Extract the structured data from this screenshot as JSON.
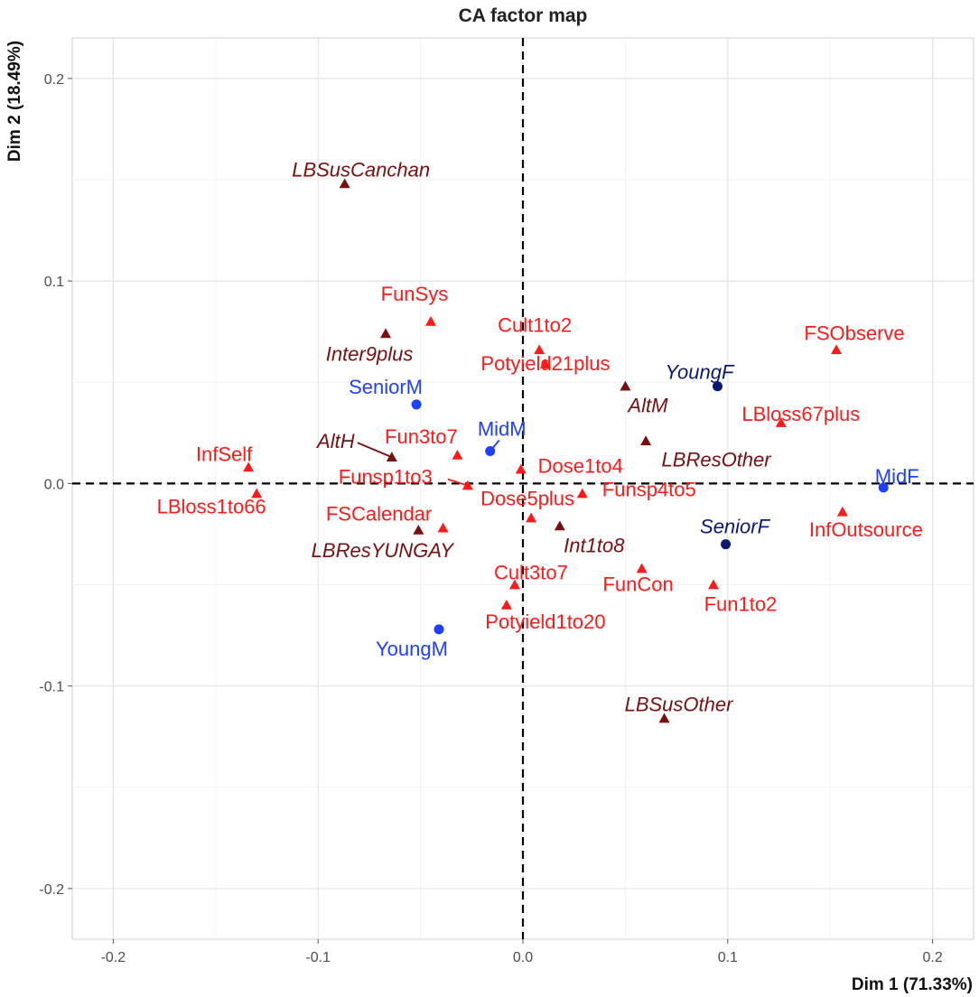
{
  "chart_data": {
    "type": "scatter",
    "title": "CA factor map",
    "xlabel": "Dim 1 (71.33%)",
    "ylabel": "Dim 2 (18.49%)",
    "xlim": [
      -0.22,
      0.22
    ],
    "ylim": [
      -0.225,
      0.22
    ],
    "xticks": [
      -0.2,
      -0.1,
      0.0,
      0.1,
      0.2
    ],
    "xtick_labels": [
      "-0.2",
      "-0.1",
      "0.0",
      "0.1",
      "0.2"
    ],
    "yticks": [
      -0.2,
      -0.1,
      0.0,
      0.1,
      0.2
    ],
    "ytick_labels": [
      "-0.2",
      "-0.1",
      "0.0",
      "0.1",
      "0.2"
    ],
    "grid": true,
    "reference_lines": {
      "x": 0,
      "y": 0,
      "style": "dashed"
    },
    "legend": "none",
    "colors": {
      "row_active": "#ff1a1a",
      "row_supplementary": "#7a0f0f",
      "col_active": "#1f3fff",
      "col_supplementary": "#0a1a73"
    },
    "series": [
      {
        "group": "row_active",
        "marker": "triangle",
        "italic": false,
        "points": [
          {
            "label": "FunSys",
            "x": -0.045,
            "y": 0.08
          },
          {
            "label": "Cult1to2",
            "x": 0.008,
            "y": 0.066
          },
          {
            "label": "Potyield21plus",
            "x": 0.011,
            "y": 0.059
          },
          {
            "label": "FSObserve",
            "x": 0.153,
            "y": 0.066
          },
          {
            "label": "LBloss67plus",
            "x": 0.126,
            "y": 0.03
          },
          {
            "label": "InfSelf",
            "x": -0.134,
            "y": 0.008
          },
          {
            "label": "Fun3to7",
            "x": -0.032,
            "y": 0.014
          },
          {
            "label": "Funsp1to3",
            "x": -0.027,
            "y": -0.001
          },
          {
            "label": "Dose1to4",
            "x": -0.001,
            "y": 0.007
          },
          {
            "label": "Dose5plus",
            "x": 0.004,
            "y": -0.017
          },
          {
            "label": "Funsp4to5",
            "x": 0.029,
            "y": -0.005
          },
          {
            "label": "LBloss1to66",
            "x": -0.13,
            "y": -0.005
          },
          {
            "label": "FSCalendar",
            "x": -0.039,
            "y": -0.022
          },
          {
            "label": "InfOutsource",
            "x": 0.156,
            "y": -0.014
          },
          {
            "label": "Cult3to7",
            "x": -0.004,
            "y": -0.05
          },
          {
            "label": "FunCon",
            "x": 0.058,
            "y": -0.042
          },
          {
            "label": "Fun1to2",
            "x": 0.093,
            "y": -0.05
          },
          {
            "label": "Potyield1to20",
            "x": -0.008,
            "y": -0.06
          }
        ]
      },
      {
        "group": "row_supplementary",
        "marker": "triangle",
        "italic": true,
        "points": [
          {
            "label": "LBSusCanchan",
            "x": -0.087,
            "y": 0.148
          },
          {
            "label": "Inter9plus",
            "x": -0.067,
            "y": 0.074
          },
          {
            "label": "AltM",
            "x": 0.05,
            "y": 0.048
          },
          {
            "label": "AltH",
            "x": -0.064,
            "y": 0.013
          },
          {
            "label": "LBResOther",
            "x": 0.06,
            "y": 0.021
          },
          {
            "label": "Int1to8",
            "x": 0.018,
            "y": -0.021
          },
          {
            "label": "LBResYUNGAY",
            "x": -0.051,
            "y": -0.023
          },
          {
            "label": "LBSusOther",
            "x": 0.069,
            "y": -0.116
          }
        ]
      },
      {
        "group": "col_active",
        "marker": "circle",
        "italic": false,
        "points": [
          {
            "label": "SeniorM",
            "x": -0.052,
            "y": 0.039
          },
          {
            "label": "MidM",
            "x": -0.016,
            "y": 0.016
          },
          {
            "label": "MidF",
            "x": 0.176,
            "y": -0.002
          },
          {
            "label": "YoungM",
            "x": -0.041,
            "y": -0.072
          }
        ]
      },
      {
        "group": "col_supplementary",
        "marker": "circle",
        "italic": true,
        "points": [
          {
            "label": "YoungF",
            "x": 0.095,
            "y": 0.048
          },
          {
            "label": "SeniorF",
            "x": 0.099,
            "y": -0.03
          }
        ]
      }
    ]
  }
}
